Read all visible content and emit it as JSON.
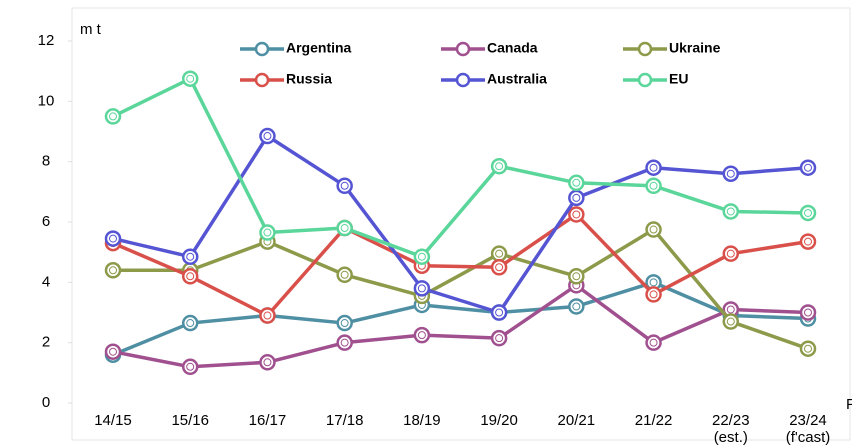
{
  "chart_data": {
    "type": "line",
    "y_label": "m t",
    "x_label": "F",
    "categories": [
      "14/15",
      "15/16",
      "16/17",
      "17/18",
      "18/19",
      "19/20",
      "20/21",
      "21/22",
      "22/23",
      "23/24"
    ],
    "category_sublabels": [
      null,
      null,
      null,
      null,
      null,
      null,
      null,
      null,
      "(est.)",
      "(f'cast)"
    ],
    "ylim": [
      0,
      12
    ],
    "yticks": [
      0,
      2,
      4,
      6,
      8,
      10,
      12
    ],
    "legend": "top",
    "series": [
      {
        "name": "Argentina",
        "color": "#4f8fa3",
        "values": [
          1.6,
          2.65,
          2.9,
          2.65,
          3.25,
          3.0,
          3.2,
          4.0,
          2.9,
          2.8
        ]
      },
      {
        "name": "Canada",
        "color": "#a0508f",
        "values": [
          1.7,
          1.2,
          1.35,
          2.0,
          2.25,
          2.15,
          3.9,
          2.0,
          3.1,
          3.0
        ]
      },
      {
        "name": "Ukraine",
        "color": "#8c9a4a",
        "values": [
          4.4,
          4.4,
          5.35,
          4.25,
          3.55,
          4.95,
          4.2,
          5.75,
          2.7,
          1.8
        ]
      },
      {
        "name": "Russia",
        "color": "#d9504a",
        "values": [
          5.3,
          4.2,
          2.9,
          5.8,
          4.55,
          4.5,
          6.25,
          3.6,
          4.95,
          5.35
        ]
      },
      {
        "name": "Australia",
        "color": "#5555d4",
        "values": [
          5.45,
          4.85,
          8.85,
          7.2,
          3.8,
          3.0,
          6.8,
          7.8,
          7.6,
          7.8
        ]
      },
      {
        "name": "EU",
        "color": "#5bd69a",
        "values": [
          9.5,
          10.75,
          5.65,
          5.8,
          4.85,
          7.85,
          7.3,
          7.2,
          6.35,
          6.3
        ]
      }
    ]
  }
}
